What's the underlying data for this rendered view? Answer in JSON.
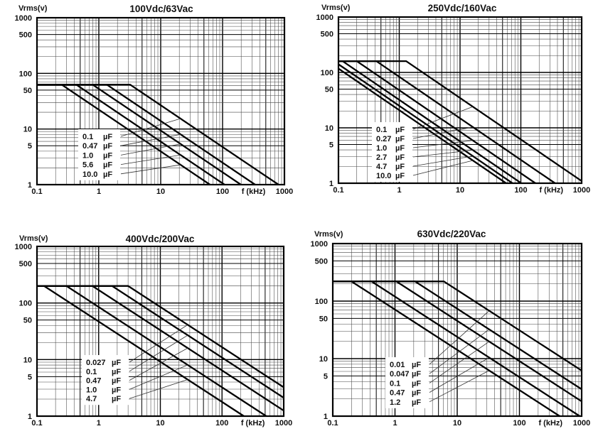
{
  "page": {
    "background_color": "#ffffff",
    "ink_color": "#111111",
    "description_texts": {
      "y_axis_label": "Vrms(v)",
      "x_axis_label": "f (kHz)",
      "capacitance_unit": "µF"
    }
  },
  "chart_data": [
    {
      "type": "line",
      "title": "100Vdc/63Vac",
      "y_axis_label": "Vrms(v)",
      "x_axis_label": "f (kHz)",
      "x_tick_labels": [
        "0.1",
        "1",
        "10",
        "100",
        "1000"
      ],
      "y_tick_labels": [
        "1",
        "5",
        "10",
        "50",
        "100",
        "500",
        "1000"
      ],
      "xlim_kHz": [
        0.1,
        1000
      ],
      "ylim_V": [
        1,
        1000
      ],
      "log_x": true,
      "log_y": true,
      "grid": "log-log, minor lines 2-9 each decade",
      "flat_vrms_V": 63,
      "rolloff_slope_decades": -0.75,
      "series": [
        {
          "label": "0.1",
          "unit": "µF",
          "corner_kHz": 3.2
        },
        {
          "label": "0.47",
          "unit": "µF",
          "corner_kHz": 1.34
        },
        {
          "label": "1.0",
          "unit": "µF",
          "corner_kHz": 0.79
        },
        {
          "label": "5.6",
          "unit": "µF",
          "corner_kHz": 0.43
        },
        {
          "label": "10.0",
          "unit": "µF",
          "corner_kHz": 0.25
        }
      ]
    },
    {
      "type": "line",
      "title": "250Vdc/160Vac",
      "y_axis_label": "Vrms(v)",
      "x_axis_label": "f (kHz)",
      "x_tick_labels": [
        "0.1",
        "1",
        "10",
        "100",
        "1000"
      ],
      "y_tick_labels": [
        "1",
        "5",
        "10",
        "50",
        "100",
        "500",
        "1000"
      ],
      "xlim_kHz": [
        0.1,
        1000
      ],
      "ylim_V": [
        1,
        1000
      ],
      "log_x": true,
      "log_y": true,
      "grid": "log-log, minor lines 2-9 each decade",
      "flat_vrms_V": 160,
      "rolloff_slope_decades": -0.75,
      "series": [
        {
          "label": "0.1",
          "unit": "µF",
          "corner_kHz": 1.3
        },
        {
          "label": "0.27",
          "unit": "µF",
          "corner_kHz": 0.42
        },
        {
          "label": "1.0",
          "unit": "µF",
          "corner_kHz": 0.2
        },
        {
          "label": "2.7",
          "unit": "µF",
          "corner_kHz": 0.117
        },
        {
          "label": "4.7",
          "unit": "µF",
          "corner_kHz": 0.084
        },
        {
          "label": "10.0",
          "unit": "µF",
          "corner_kHz": 0.066
        }
      ]
    },
    {
      "type": "line",
      "title": "400Vdc/200Vac",
      "y_axis_label": "Vrms(v)",
      "x_axis_label": "f (kHz)",
      "x_tick_labels": [
        "0.1",
        "1",
        "10",
        "100",
        "1000"
      ],
      "y_tick_labels": [
        "1",
        "5",
        "10",
        "50",
        "100",
        "500",
        "1000"
      ],
      "xlim_kHz": [
        0.1,
        1000
      ],
      "ylim_V": [
        1,
        1000
      ],
      "log_x": true,
      "log_y": true,
      "grid": "log-log, minor lines 2-9 each decade",
      "flat_vrms_V": 200,
      "rolloff_slope_decades": -0.71,
      "series": [
        {
          "label": "0.027",
          "unit": "µF",
          "corner_kHz": 3.0
        },
        {
          "label": "0.1",
          "unit": "µF",
          "corner_kHz": 1.65
        },
        {
          "label": "0.47",
          "unit": "µF",
          "corner_kHz": 0.79
        },
        {
          "label": "1.0",
          "unit": "µF",
          "corner_kHz": 0.3
        },
        {
          "label": "4.7",
          "unit": "µF",
          "corner_kHz": 0.13
        }
      ]
    },
    {
      "type": "line",
      "title": "630Vdc/220Vac",
      "y_axis_label": "Vrms(v)",
      "x_axis_label": "f (kHz)",
      "x_tick_labels": [
        "0.1",
        "1",
        "10",
        "100",
        "1000"
      ],
      "y_tick_labels": [
        "1",
        "5",
        "10",
        "50",
        "100",
        "500",
        "1000"
      ],
      "xlim_kHz": [
        0.1,
        1000
      ],
      "ylim_V": [
        1,
        1000
      ],
      "log_x": true,
      "log_y": true,
      "grid": "log-log, minor lines 2-9 each decade",
      "flat_vrms_V": 220,
      "rolloff_slope_decades": -0.7,
      "series": [
        {
          "label": "0.01",
          "unit": "µF",
          "corner_kHz": 6.1
        },
        {
          "label": "0.047",
          "unit": "µF",
          "corner_kHz": 2.1
        },
        {
          "label": "0.1",
          "unit": "µF",
          "corner_kHz": 1.05
        },
        {
          "label": "0.47",
          "unit": "µF",
          "corner_kHz": 0.42
        },
        {
          "label": "1.2",
          "unit": "µF",
          "corner_kHz": 0.2
        }
      ]
    }
  ]
}
